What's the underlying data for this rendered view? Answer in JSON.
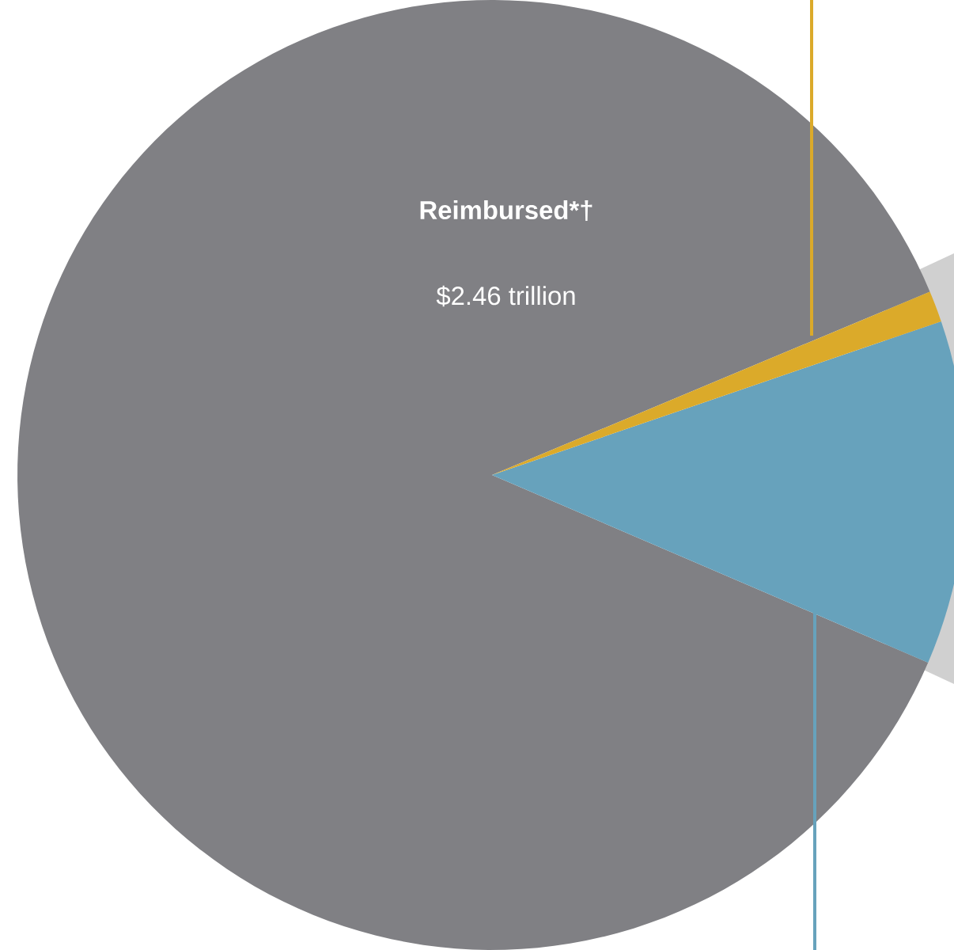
{
  "chart_data": {
    "type": "pie",
    "categories": [
      "Reimbursed*†",
      null,
      null
    ],
    "values": [
      2.46,
      0.33,
      0.03
    ],
    "value_labels": [
      "$2.46 trillion",
      null,
      null
    ],
    "colors": [
      "#808084",
      "#67a2bc",
      "#dbaa2a"
    ]
  }
}
